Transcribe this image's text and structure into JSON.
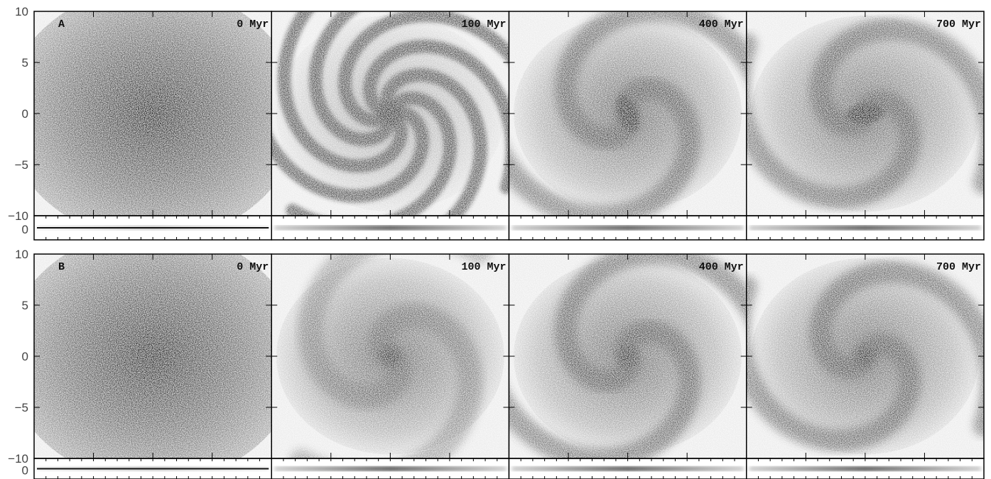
{
  "figure": {
    "rows": [
      {
        "label": "A",
        "panels": [
          {
            "time": "0 Myr",
            "structure": "smooth",
            "bar": false
          },
          {
            "time": "100 Myr",
            "structure": "flocculent",
            "bar": false
          },
          {
            "time": "400 Myr",
            "structure": "two-arm",
            "bar": true
          },
          {
            "time": "700 Myr",
            "structure": "barred",
            "bar": true
          }
        ]
      },
      {
        "label": "B",
        "panels": [
          {
            "time": "0 Myr",
            "structure": "smooth",
            "bar": false
          },
          {
            "time": "100 Myr",
            "structure": "weak-arms",
            "bar": false
          },
          {
            "time": "400 Myr",
            "structure": "two-arm",
            "bar": false
          },
          {
            "time": "700 Myr",
            "structure": "two-arm",
            "bar": false
          }
        ]
      }
    ],
    "y_ticks": [
      "10",
      "5",
      "0",
      "−5",
      "−10"
    ],
    "edge_ticks": [
      "−10",
      "0"
    ],
    "colormap": "greyscale (dark = high density)"
  }
}
